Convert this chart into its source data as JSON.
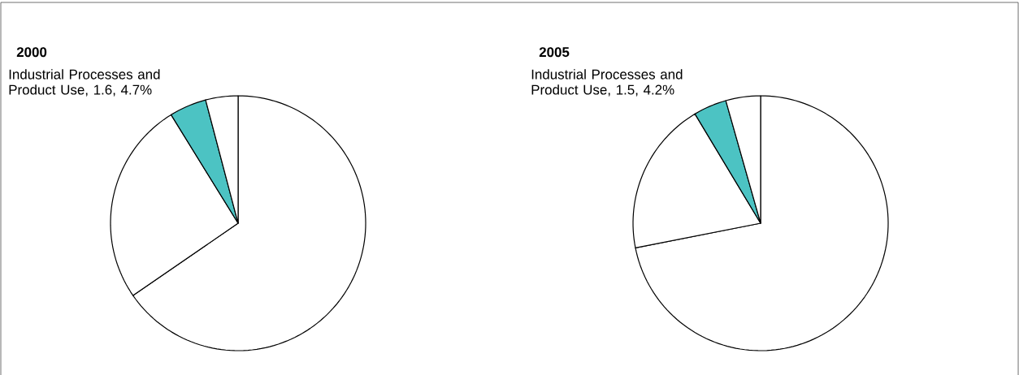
{
  "chart_data": [
    {
      "type": "pie",
      "title": "2000",
      "categories": [
        null,
        null,
        "Industrial Processes and Product Use, 1.6, 4.7%",
        null
      ],
      "values": [
        65.4,
        25.8,
        4.7,
        4.1
      ],
      "colors": [
        "#ffffff",
        "#ffffff",
        "#4cc3c3",
        "#ffffff"
      ]
    },
    {
      "type": "pie",
      "title": "2005",
      "categories": [
        null,
        null,
        "Industrial Processes and Product Use, 1.5, 4.2%",
        null
      ],
      "values": [
        71.9,
        19.5,
        4.2,
        4.4
      ],
      "colors": [
        "#ffffff",
        "#ffffff",
        "#4cc3c3",
        "#ffffff"
      ]
    }
  ]
}
